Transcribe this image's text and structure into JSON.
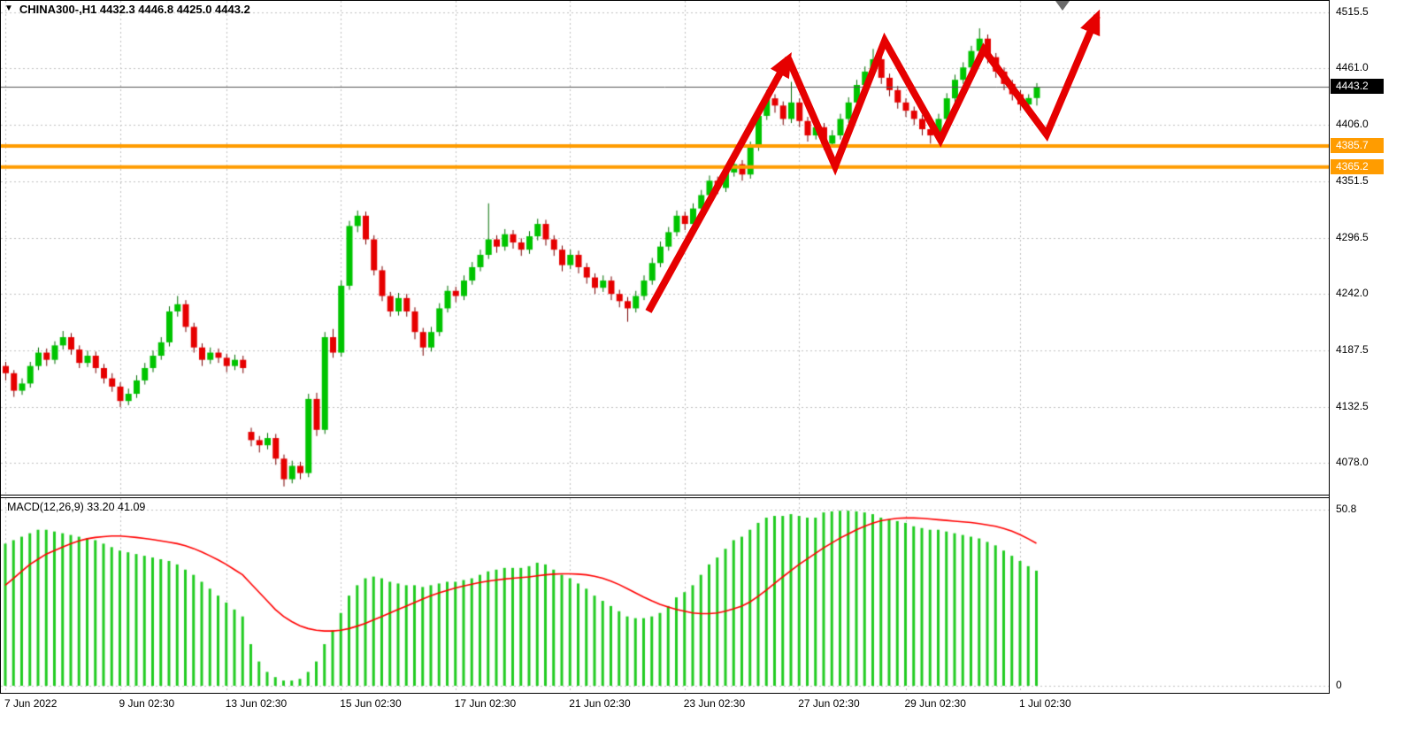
{
  "header": {
    "dropdown_icon": "▼",
    "symbol_title": "CHINA300-,H1 4432.3 4446.8 4425.0 4443.2"
  },
  "colors": {
    "background": "#ffffff",
    "bull": "#00c400",
    "bull_border": "#006e00",
    "bear": "#e60000",
    "bear_border": "#7a0000",
    "grid": "#c0c0c0",
    "hline": "#ff9c00",
    "current_price_line": "#555555",
    "current_price_bg": "#000000",
    "macd_hist": "#22cc22",
    "macd_signal": "#ff0000",
    "annotation": "#e60000"
  },
  "chart_data": {
    "type": "candlestick",
    "symbol": "CHINA300-",
    "timeframe": "H1",
    "last_bar": {
      "open": 4432.3,
      "high": 4446.8,
      "low": 4425.0,
      "close": 4443.2
    },
    "price_panel": {
      "y_range": [
        4078.0,
        4515.5
      ],
      "y_ticks": [
        4515.5,
        4461.0,
        4406.0,
        4351.5,
        4296.5,
        4242.0,
        4187.5,
        4132.5,
        4078.0
      ],
      "current_price": {
        "value": 4443.2,
        "label": "4443.2"
      },
      "hlines": [
        {
          "value": 4385.7,
          "label": "4385.7"
        },
        {
          "value": 4365.2,
          "label": "4365.2"
        }
      ],
      "ohlc": [
        [
          4172,
          4176,
          4158,
          4165
        ],
        [
          4165,
          4168,
          4142,
          4148
        ],
        [
          4148,
          4160,
          4144,
          4155
        ],
        [
          4155,
          4176,
          4151,
          4172
        ],
        [
          4172,
          4190,
          4168,
          4185
        ],
        [
          4185,
          4189,
          4172,
          4178
        ],
        [
          4178,
          4196,
          4174,
          4192
        ],
        [
          4192,
          4206,
          4188,
          4200
        ],
        [
          4200,
          4204,
          4183,
          4188
        ],
        [
          4188,
          4192,
          4170,
          4175
        ],
        [
          4175,
          4187,
          4171,
          4182
        ],
        [
          4182,
          4186,
          4165,
          4170
        ],
        [
          4170,
          4174,
          4155,
          4160
        ],
        [
          4160,
          4165,
          4147,
          4152
        ],
        [
          4152,
          4156,
          4132,
          4138
        ],
        [
          4138,
          4150,
          4134,
          4145
        ],
        [
          4145,
          4163,
          4141,
          4158
        ],
        [
          4158,
          4175,
          4154,
          4170
        ],
        [
          4170,
          4187,
          4166,
          4182
        ],
        [
          4182,
          4200,
          4178,
          4195
        ],
        [
          4195,
          4230,
          4191,
          4225
        ],
        [
          4225,
          4240,
          4220,
          4232
        ],
        [
          4232,
          4236,
          4205,
          4210
        ],
        [
          4210,
          4214,
          4185,
          4190
        ],
        [
          4190,
          4194,
          4172,
          4178
        ],
        [
          4178,
          4190,
          4174,
          4185
        ],
        [
          4185,
          4189,
          4175,
          4180
        ],
        [
          4180,
          4184,
          4166,
          4172
        ],
        [
          4172,
          4183,
          4168,
          4178
        ],
        [
          4178,
          4182,
          4165,
          4170
        ],
        [
          4108,
          4112,
          4094,
          4100
        ],
        [
          4100,
          4104,
          4088,
          4095
        ],
        [
          4095,
          4107,
          4091,
          4102
        ],
        [
          4102,
          4106,
          4076,
          4082
        ],
        [
          4082,
          4086,
          4055,
          4062
        ],
        [
          4062,
          4080,
          4058,
          4075
        ],
        [
          4075,
          4079,
          4062,
          4068
        ],
        [
          4068,
          4145,
          4064,
          4140
        ],
        [
          4140,
          4146,
          4104,
          4110
        ],
        [
          4110,
          4205,
          4106,
          4200
        ],
        [
          4200,
          4208,
          4180,
          4185
        ],
        [
          4185,
          4255,
          4181,
          4250
        ],
        [
          4250,
          4313,
          4246,
          4308
        ],
        [
          4308,
          4323,
          4302,
          4318
        ],
        [
          4318,
          4322,
          4290,
          4295
        ],
        [
          4295,
          4299,
          4260,
          4265
        ],
        [
          4265,
          4269,
          4235,
          4240
        ],
        [
          4240,
          4244,
          4220,
          4225
        ],
        [
          4225,
          4243,
          4221,
          4238
        ],
        [
          4238,
          4242,
          4220,
          4225
        ],
        [
          4225,
          4229,
          4198,
          4205
        ],
        [
          4205,
          4209,
          4182,
          4190
        ],
        [
          4190,
          4210,
          4186,
          4205
        ],
        [
          4205,
          4233,
          4201,
          4228
        ],
        [
          4228,
          4250,
          4224,
          4245
        ],
        [
          4245,
          4249,
          4234,
          4240
        ],
        [
          4240,
          4260,
          4236,
          4255
        ],
        [
          4255,
          4273,
          4251,
          4268
        ],
        [
          4268,
          4285,
          4264,
          4280
        ],
        [
          4280,
          4330,
          4276,
          4295
        ],
        [
          4295,
          4299,
          4282,
          4288
        ],
        [
          4288,
          4305,
          4284,
          4300
        ],
        [
          4300,
          4304,
          4286,
          4292
        ],
        [
          4292,
          4296,
          4279,
          4285
        ],
        [
          4285,
          4303,
          4281,
          4298
        ],
        [
          4298,
          4315,
          4294,
          4310
        ],
        [
          4310,
          4314,
          4289,
          4295
        ],
        [
          4295,
          4299,
          4279,
          4285
        ],
        [
          4285,
          4289,
          4264,
          4270
        ],
        [
          4270,
          4285,
          4266,
          4280
        ],
        [
          4280,
          4284,
          4262,
          4268
        ],
        [
          4268,
          4272,
          4252,
          4258
        ],
        [
          4258,
          4262,
          4242,
          4248
        ],
        [
          4248,
          4260,
          4244,
          4255
        ],
        [
          4255,
          4259,
          4236,
          4242
        ],
        [
          4242,
          4246,
          4229,
          4235
        ],
        [
          4235,
          4239,
          4215,
          4228
        ],
        [
          4228,
          4245,
          4224,
          4240
        ],
        [
          4240,
          4260,
          4236,
          4255
        ],
        [
          4255,
          4277,
          4251,
          4272
        ],
        [
          4272,
          4293,
          4268,
          4288
        ],
        [
          4288,
          4307,
          4284,
          4302
        ],
        [
          4302,
          4323,
          4298,
          4318
        ],
        [
          4318,
          4322,
          4304,
          4310
        ],
        [
          4310,
          4330,
          4306,
          4325
        ],
        [
          4325,
          4343,
          4321,
          4338
        ],
        [
          4338,
          4357,
          4334,
          4352
        ],
        [
          4352,
          4356,
          4339,
          4345
        ],
        [
          4345,
          4365,
          4341,
          4360
        ],
        [
          4360,
          4373,
          4356,
          4368
        ],
        [
          4368,
          4372,
          4352,
          4358
        ],
        [
          4358,
          4390,
          4354,
          4385
        ],
        [
          4385,
          4420,
          4381,
          4415
        ],
        [
          4415,
          4440,
          4411,
          4432
        ],
        [
          4432,
          4436,
          4418,
          4425
        ],
        [
          4425,
          4429,
          4406,
          4412
        ],
        [
          4412,
          4448,
          4408,
          4428
        ],
        [
          4428,
          4432,
          4404,
          4410
        ],
        [
          4410,
          4414,
          4390,
          4396
        ],
        [
          4396,
          4409,
          4392,
          4404
        ],
        [
          4404,
          4408,
          4382,
          4388
        ],
        [
          4388,
          4401,
          4384,
          4396
        ],
        [
          4396,
          4417,
          4392,
          4412
        ],
        [
          4412,
          4433,
          4408,
          4428
        ],
        [
          4428,
          4450,
          4424,
          4445
        ],
        [
          4445,
          4463,
          4441,
          4458
        ],
        [
          4458,
          4480,
          4454,
          4470
        ],
        [
          4470,
          4474,
          4446,
          4452
        ],
        [
          4452,
          4456,
          4434,
          4440
        ],
        [
          4440,
          4444,
          4422,
          4428
        ],
        [
          4428,
          4432,
          4414,
          4420
        ],
        [
          4420,
          4424,
          4406,
          4412
        ],
        [
          4412,
          4416,
          4396,
          4402
        ],
        [
          4402,
          4406,
          4388,
          4396
        ],
        [
          4396,
          4417,
          4392,
          4412
        ],
        [
          4412,
          4437,
          4408,
          4432
        ],
        [
          4432,
          4455,
          4428,
          4450
        ],
        [
          4450,
          4467,
          4446,
          4462
        ],
        [
          4462,
          4483,
          4458,
          4478
        ],
        [
          4478,
          4500,
          4474,
          4490
        ],
        [
          4490,
          4494,
          4466,
          4472
        ],
        [
          4472,
          4476,
          4452,
          4458
        ],
        [
          4458,
          4462,
          4440,
          4446
        ],
        [
          4446,
          4450,
          4430,
          4436
        ],
        [
          4436,
          4440,
          4420,
          4426
        ],
        [
          4426,
          4436,
          4422,
          4432.3
        ],
        [
          4432.3,
          4446.8,
          4425.0,
          4443.2
        ]
      ]
    },
    "macd_panel": {
      "label": "MACD(12,26,9) 33.20 41.09",
      "params": "12,26,9",
      "macd_value": 33.2,
      "signal_value": 41.09,
      "y_range": [
        0,
        50.8
      ],
      "y_ticks": [
        {
          "value": 50.8,
          "label": "50.8"
        },
        {
          "value": 0,
          "label": "0"
        }
      ],
      "histogram": [
        41,
        42,
        43,
        44,
        45,
        45,
        44.5,
        44,
        43.5,
        43,
        42.5,
        42,
        41,
        40,
        39,
        38.5,
        38,
        37.5,
        37,
        36.5,
        36,
        35,
        33.5,
        32,
        30,
        28,
        26,
        24,
        22,
        20,
        12,
        7,
        4,
        2.5,
        1.5,
        1.5,
        2,
        4,
        7,
        12,
        16,
        21,
        26,
        29,
        31,
        31.5,
        31,
        30,
        29.5,
        29,
        29,
        28.5,
        29,
        29.5,
        30,
        30,
        30.5,
        31,
        32,
        33,
        33.5,
        34,
        34,
        34,
        34.5,
        35.5,
        35,
        33.5,
        32,
        31,
        29.5,
        28,
        26,
        24.5,
        23,
        21.5,
        20,
        19.5,
        19.5,
        20,
        21,
        23,
        25.5,
        27,
        29,
        32,
        35,
        37,
        39.5,
        42,
        43,
        45,
        47,
        48.5,
        49,
        49,
        49.5,
        49,
        48.5,
        48.5,
        50,
        50.3,
        50.5,
        50.5,
        50.3,
        50,
        49.5,
        48.5,
        48,
        47.5,
        47,
        46,
        45.5,
        45,
        45,
        44.5,
        44,
        43.5,
        43,
        42.5,
        41.5,
        40.5,
        39,
        37.5,
        36,
        34.5,
        33.2
      ],
      "signal": [
        29,
        31,
        33,
        35,
        36.5,
        38,
        39,
        40,
        41,
        41.8,
        42.4,
        42.8,
        43,
        43.2,
        43.2,
        43,
        42.8,
        42.5,
        42.2,
        41.8,
        41.4,
        41,
        40.4,
        39.6,
        38.6,
        37.5,
        36.3,
        35,
        33.5,
        32,
        29.5,
        27,
        24.5,
        22,
        20,
        18.5,
        17.3,
        16.5,
        16,
        15.8,
        15.8,
        16,
        16.5,
        17.2,
        18,
        19,
        20,
        21,
        22,
        23,
        24,
        25,
        26,
        26.8,
        27.5,
        28.2,
        28.8,
        29.3,
        29.8,
        30.2,
        30.5,
        30.8,
        31,
        31.2,
        31.4,
        31.7,
        32,
        32.2,
        32.3,
        32.3,
        32.2,
        32,
        31.6,
        31,
        30.2,
        29.2,
        28,
        26.8,
        25.6,
        24.5,
        23.5,
        22.7,
        22,
        21.5,
        21,
        20.8,
        20.8,
        21,
        21.5,
        22.2,
        23,
        24.2,
        25.8,
        27.6,
        29.5,
        31.4,
        33.2,
        35,
        36.6,
        38.2,
        39.8,
        41.2,
        42.6,
        43.8,
        45,
        46,
        46.9,
        47.6,
        48,
        48.3,
        48.4,
        48.4,
        48.3,
        48.1,
        47.9,
        47.7,
        47.5,
        47.3,
        47.1,
        46.8,
        46.4,
        46,
        45.4,
        44.6,
        43.6,
        42.4,
        41.09
      ]
    },
    "x_ticks": [
      {
        "index": 0,
        "label": "7 Jun 2022"
      },
      {
        "index": 14,
        "label": "9 Jun 02:30"
      },
      {
        "index": 27,
        "label": "13 Jun 02:30"
      },
      {
        "index": 41,
        "label": "15 Jun 02:30"
      },
      {
        "index": 55,
        "label": "17 Jun 02:30"
      },
      {
        "index": 69,
        "label": "21 Jun 02:30"
      },
      {
        "index": 83,
        "label": "23 Jun 02:30"
      },
      {
        "index": 97,
        "label": "27 Jun 02:30"
      },
      {
        "index": 110,
        "label": "29 Jun 02:30"
      },
      {
        "index": 124,
        "label": "1 Jul 02:30"
      }
    ],
    "annotation": {
      "color": "#e60000",
      "stroke_width": 8,
      "segments": [
        [
          [
            733,
            352
          ],
          [
            891,
            66
          ]
        ],
        [
          [
            891,
            66
          ],
          [
            944,
            188
          ],
          [
            1000,
            46
          ],
          [
            1063,
            158
          ],
          [
            1112,
            56
          ],
          [
            1183,
            152
          ],
          [
            1240,
            18
          ]
        ]
      ]
    }
  }
}
